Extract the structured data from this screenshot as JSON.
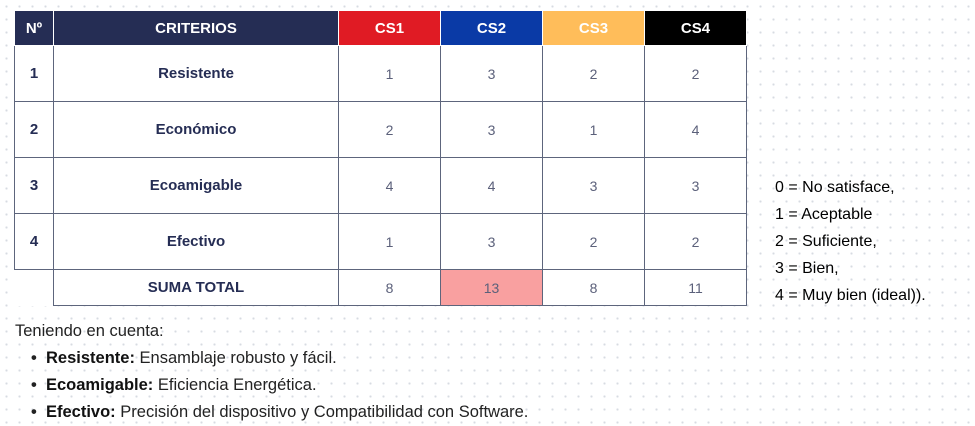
{
  "table": {
    "headers": {
      "num": "Nº",
      "criteria": "CRITERIOS",
      "cs1": "CS1",
      "cs2": "CS2",
      "cs3": "CS3",
      "cs4": "CS4"
    },
    "header_colors": {
      "num": "#252d54",
      "criteria": "#252d54",
      "cs1": "#e01b24",
      "cs2": "#0a3aa6",
      "cs3": "#ffbd5a",
      "cs4": "#000000"
    },
    "rows": [
      {
        "num": "1",
        "name": "Resistente",
        "cs1": "1",
        "cs2": "3",
        "cs3": "2",
        "cs4": "2"
      },
      {
        "num": "2",
        "name": "Económico",
        "cs1": "2",
        "cs2": "3",
        "cs3": "1",
        "cs4": "4"
      },
      {
        "num": "3",
        "name": "Ecoamigable",
        "cs1": "4",
        "cs2": "4",
        "cs3": "3",
        "cs4": "3"
      },
      {
        "num": "4",
        "name": "Efectivo",
        "cs1": "1",
        "cs2": "3",
        "cs3": "2",
        "cs4": "2"
      }
    ],
    "total": {
      "label": "SUMA TOTAL",
      "cs1": "8",
      "cs2": "13",
      "cs3": "8",
      "cs4": "11",
      "highlight_color": "#f9a0a0"
    }
  },
  "legend": [
    "0 = No satisface,",
    "1 = Aceptable",
    "2 = Suficiente,",
    "3 = Bien,",
    "4 = Muy bien (ideal))."
  ],
  "notes": {
    "intro": "Teniendo en cuenta:",
    "items": [
      {
        "term": "Resistente:",
        "desc": " Ensamblaje robusto y fácil."
      },
      {
        "term": "Ecoamigable:",
        "desc": " Eficiencia Energética."
      },
      {
        "term": "Efectivo:",
        "desc": " Precisión del dispositivo y Compatibilidad con Software."
      }
    ]
  }
}
